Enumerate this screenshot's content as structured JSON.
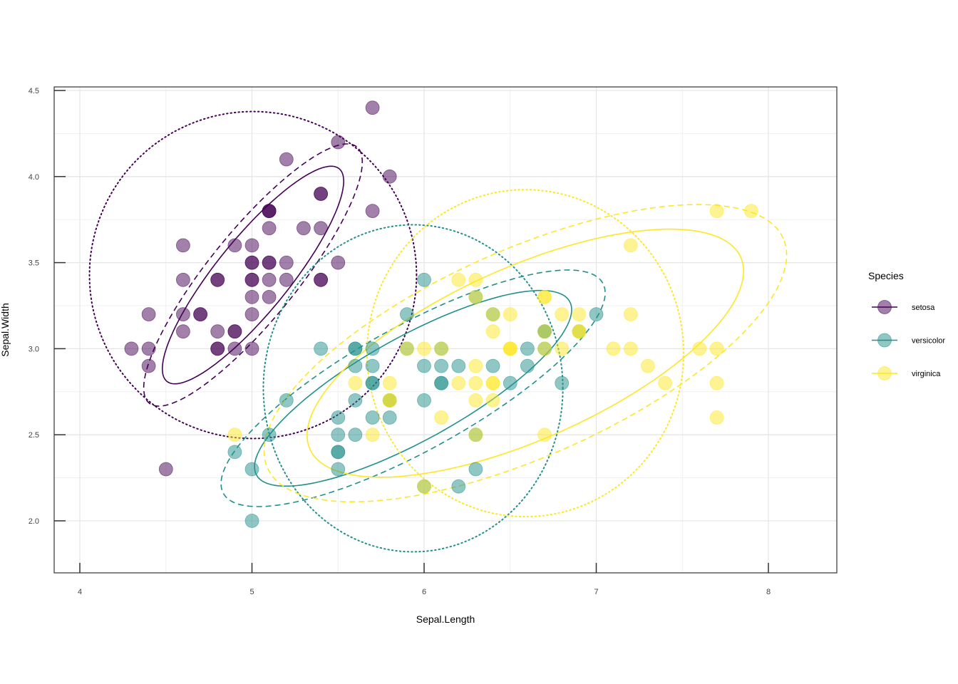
{
  "chart_data": {
    "type": "scatter",
    "xlabel": "Sepal.Length",
    "ylabel": "Sepal.Width",
    "xlim": [
      3.85,
      8.4
    ],
    "ylim": [
      1.7,
      4.55
    ],
    "x_ticks": [
      "4",
      "5",
      "6",
      "7",
      "8"
    ],
    "y_ticks": [
      "2.0",
      "2.5",
      "3.0",
      "3.5",
      "4.0",
      "4.5"
    ],
    "grid": true,
    "legend": {
      "title": "Species",
      "placement": "right"
    },
    "ellipse_line_styles": [
      "solid",
      "dashed",
      "dotted"
    ],
    "series": [
      {
        "name": "setosa",
        "color": "#440154",
        "points": [
          [
            5.1,
            3.5
          ],
          [
            4.9,
            3.0
          ],
          [
            4.7,
            3.2
          ],
          [
            4.6,
            3.1
          ],
          [
            5.0,
            3.6
          ],
          [
            5.4,
            3.9
          ],
          [
            4.6,
            3.4
          ],
          [
            5.0,
            3.4
          ],
          [
            4.4,
            2.9
          ],
          [
            4.9,
            3.1
          ],
          [
            5.4,
            3.7
          ],
          [
            4.8,
            3.4
          ],
          [
            4.8,
            3.0
          ],
          [
            4.3,
            3.0
          ],
          [
            5.8,
            4.0
          ],
          [
            5.7,
            4.4
          ],
          [
            5.4,
            3.9
          ],
          [
            5.1,
            3.5
          ],
          [
            5.7,
            3.8
          ],
          [
            5.1,
            3.8
          ],
          [
            5.4,
            3.4
          ],
          [
            5.1,
            3.7
          ],
          [
            4.6,
            3.6
          ],
          [
            5.1,
            3.3
          ],
          [
            4.8,
            3.4
          ],
          [
            5.0,
            3.0
          ],
          [
            5.0,
            3.4
          ],
          [
            5.2,
            3.5
          ],
          [
            5.2,
            3.4
          ],
          [
            4.7,
            3.2
          ],
          [
            4.8,
            3.1
          ],
          [
            5.4,
            3.4
          ],
          [
            5.2,
            4.1
          ],
          [
            5.5,
            4.2
          ],
          [
            4.9,
            3.1
          ],
          [
            5.0,
            3.2
          ],
          [
            5.5,
            3.5
          ],
          [
            4.9,
            3.6
          ],
          [
            4.4,
            3.0
          ],
          [
            5.1,
            3.4
          ],
          [
            5.0,
            3.5
          ],
          [
            4.5,
            2.3
          ],
          [
            4.4,
            3.2
          ],
          [
            5.0,
            3.5
          ],
          [
            5.1,
            3.8
          ],
          [
            4.8,
            3.0
          ],
          [
            5.1,
            3.8
          ],
          [
            4.6,
            3.2
          ],
          [
            5.3,
            3.7
          ],
          [
            5.0,
            3.3
          ]
        ],
        "ellipses": [
          {
            "style": "solid",
            "center": [
              5.006,
              3.428
            ],
            "axes": [
              0.795,
              0.212
            ],
            "angle_deg": 51
          },
          {
            "style": "dashed",
            "center": [
              5.006,
              3.428
            ],
            "axes": [
              0.958,
              0.256
            ],
            "angle_deg": 51
          },
          {
            "style": "dotted",
            "center": [
              5.006,
              3.428
            ],
            "axes": [
              0.95,
              0.95
            ],
            "angle_deg": 0
          }
        ]
      },
      {
        "name": "versicolor",
        "color": "#21908C",
        "points": [
          [
            7.0,
            3.2
          ],
          [
            6.4,
            3.2
          ],
          [
            6.9,
            3.1
          ],
          [
            5.5,
            2.3
          ],
          [
            6.5,
            2.8
          ],
          [
            5.7,
            2.8
          ],
          [
            6.3,
            3.3
          ],
          [
            4.9,
            2.4
          ],
          [
            6.6,
            2.9
          ],
          [
            5.2,
            2.7
          ],
          [
            5.0,
            2.0
          ],
          [
            5.9,
            3.0
          ],
          [
            6.0,
            2.2
          ],
          [
            6.1,
            2.9
          ],
          [
            5.6,
            2.9
          ],
          [
            6.7,
            3.1
          ],
          [
            5.6,
            3.0
          ],
          [
            5.8,
            2.7
          ],
          [
            6.2,
            2.2
          ],
          [
            5.6,
            2.5
          ],
          [
            5.9,
            3.2
          ],
          [
            6.1,
            2.8
          ],
          [
            6.3,
            2.5
          ],
          [
            6.1,
            2.8
          ],
          [
            6.4,
            2.9
          ],
          [
            6.6,
            3.0
          ],
          [
            6.8,
            2.8
          ],
          [
            6.7,
            3.0
          ],
          [
            6.0,
            2.9
          ],
          [
            5.7,
            2.6
          ],
          [
            5.5,
            2.4
          ],
          [
            5.5,
            2.4
          ],
          [
            5.8,
            2.7
          ],
          [
            6.0,
            2.7
          ],
          [
            5.4,
            3.0
          ],
          [
            6.0,
            3.4
          ],
          [
            6.7,
            3.1
          ],
          [
            6.3,
            2.3
          ],
          [
            5.6,
            3.0
          ],
          [
            5.5,
            2.5
          ],
          [
            5.5,
            2.6
          ],
          [
            6.1,
            3.0
          ],
          [
            5.8,
            2.6
          ],
          [
            5.0,
            2.3
          ],
          [
            5.6,
            2.7
          ],
          [
            5.7,
            3.0
          ],
          [
            5.7,
            2.9
          ],
          [
            6.2,
            2.9
          ],
          [
            5.1,
            2.5
          ],
          [
            5.7,
            2.8
          ]
        ],
        "ellipses": [
          {
            "style": "solid",
            "center": [
              5.936,
              2.77
            ],
            "axes": [
              1.04,
              0.3
            ],
            "angle_deg": 29
          },
          {
            "style": "dashed",
            "center": [
              5.936,
              2.77
            ],
            "axes": [
              1.26,
              0.36
            ],
            "angle_deg": 29
          },
          {
            "style": "dotted",
            "center": [
              5.936,
              2.77
            ],
            "axes": [
              0.87,
              0.95
            ],
            "angle_deg": 0
          }
        ]
      },
      {
        "name": "virginica",
        "color": "#FDE725",
        "points": [
          [
            6.3,
            3.3
          ],
          [
            5.8,
            2.7
          ],
          [
            7.1,
            3.0
          ],
          [
            6.3,
            2.9
          ],
          [
            6.5,
            3.0
          ],
          [
            7.6,
            3.0
          ],
          [
            4.9,
            2.5
          ],
          [
            7.3,
            2.9
          ],
          [
            6.7,
            2.5
          ],
          [
            7.2,
            3.6
          ],
          [
            6.5,
            3.2
          ],
          [
            6.4,
            2.7
          ],
          [
            6.8,
            3.0
          ],
          [
            5.7,
            2.5
          ],
          [
            5.8,
            2.8
          ],
          [
            6.4,
            3.2
          ],
          [
            6.5,
            3.0
          ],
          [
            7.7,
            3.8
          ],
          [
            7.7,
            2.6
          ],
          [
            6.0,
            2.2
          ],
          [
            6.9,
            3.2
          ],
          [
            5.6,
            2.8
          ],
          [
            7.7,
            2.8
          ],
          [
            6.3,
            2.7
          ],
          [
            6.7,
            3.3
          ],
          [
            7.2,
            3.2
          ],
          [
            6.2,
            2.8
          ],
          [
            6.1,
            3.0
          ],
          [
            6.4,
            2.8
          ],
          [
            7.2,
            3.0
          ],
          [
            7.4,
            2.8
          ],
          [
            7.9,
            3.8
          ],
          [
            6.4,
            2.8
          ],
          [
            6.3,
            2.8
          ],
          [
            6.1,
            2.6
          ],
          [
            7.7,
            3.0
          ],
          [
            6.3,
            3.4
          ],
          [
            6.4,
            3.1
          ],
          [
            6.0,
            3.0
          ],
          [
            6.9,
            3.1
          ],
          [
            6.7,
            3.1
          ],
          [
            6.9,
            3.1
          ],
          [
            5.8,
            2.7
          ],
          [
            6.8,
            3.2
          ],
          [
            6.7,
            3.3
          ],
          [
            6.7,
            3.0
          ],
          [
            6.3,
            2.5
          ],
          [
            6.5,
            3.0
          ],
          [
            6.2,
            3.4
          ],
          [
            5.9,
            3.0
          ]
        ],
        "ellipses": [
          {
            "style": "solid",
            "center": [
              6.588,
              2.974
            ],
            "axes": [
              1.37,
              0.5
            ],
            "angle_deg": 24
          },
          {
            "style": "dashed",
            "center": [
              6.588,
              2.974
            ],
            "axes": [
              1.64,
              0.6
            ],
            "angle_deg": 24
          },
          {
            "style": "dotted",
            "center": [
              6.588,
              2.974
            ],
            "axes": [
              0.92,
              0.95
            ],
            "angle_deg": 0
          }
        ]
      }
    ]
  }
}
